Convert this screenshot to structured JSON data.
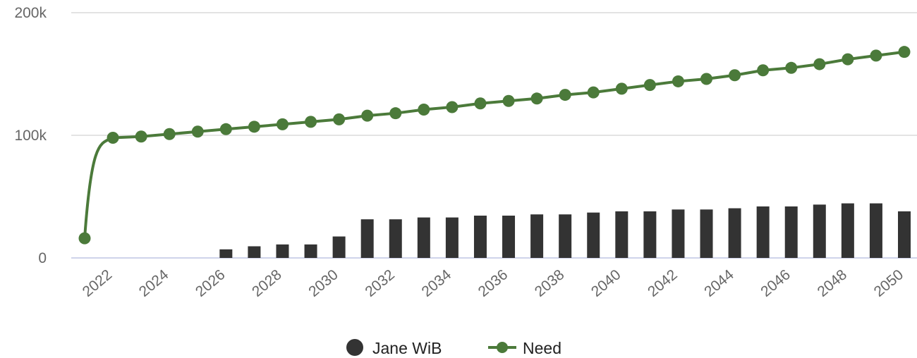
{
  "chart_data": {
    "type": "bar",
    "x": [
      2021,
      2022,
      2023,
      2024,
      2025,
      2026,
      2027,
      2028,
      2029,
      2030,
      2031,
      2032,
      2033,
      2034,
      2035,
      2036,
      2037,
      2038,
      2039,
      2040,
      2041,
      2042,
      2043,
      2044,
      2045,
      2046,
      2047,
      2048,
      2049,
      2050
    ],
    "series": [
      {
        "name": "Jane WiB",
        "type": "bar",
        "color": "#333333",
        "values": [
          0,
          0,
          0,
          0,
          0,
          7000,
          9500,
          11000,
          11000,
          17500,
          31500,
          31500,
          33000,
          33000,
          34500,
          34500,
          35500,
          35500,
          37000,
          38000,
          38000,
          39500,
          39500,
          40500,
          42000,
          42000,
          43500,
          44500,
          44500,
          38000
        ]
      },
      {
        "name": "Need",
        "type": "line",
        "color": "#4b7a3a",
        "values": [
          16000,
          98000,
          99000,
          101000,
          103000,
          105000,
          107000,
          109000,
          111000,
          113000,
          116000,
          118000,
          121000,
          123000,
          126000,
          128000,
          130000,
          133000,
          135000,
          138000,
          141000,
          144000,
          146000,
          149000,
          153000,
          155000,
          158000,
          162000,
          165000,
          168000
        ]
      }
    ],
    "xticks": [
      "2022",
      "2024",
      "2026",
      "2028",
      "2030",
      "2032",
      "2034",
      "2036",
      "2038",
      "2040",
      "2042",
      "2044",
      "2046",
      "2048",
      "2050"
    ],
    "yticks": [
      {
        "value": 0,
        "label": "0"
      },
      {
        "value": 100000,
        "label": "100k"
      },
      {
        "value": 200000,
        "label": "200k"
      }
    ],
    "ylim": [
      0,
      200000
    ],
    "xlim": [
      2021,
      2050
    ],
    "grid": true,
    "legend_position": "bottom-center",
    "title": "",
    "xlabel": "",
    "ylabel": ""
  }
}
